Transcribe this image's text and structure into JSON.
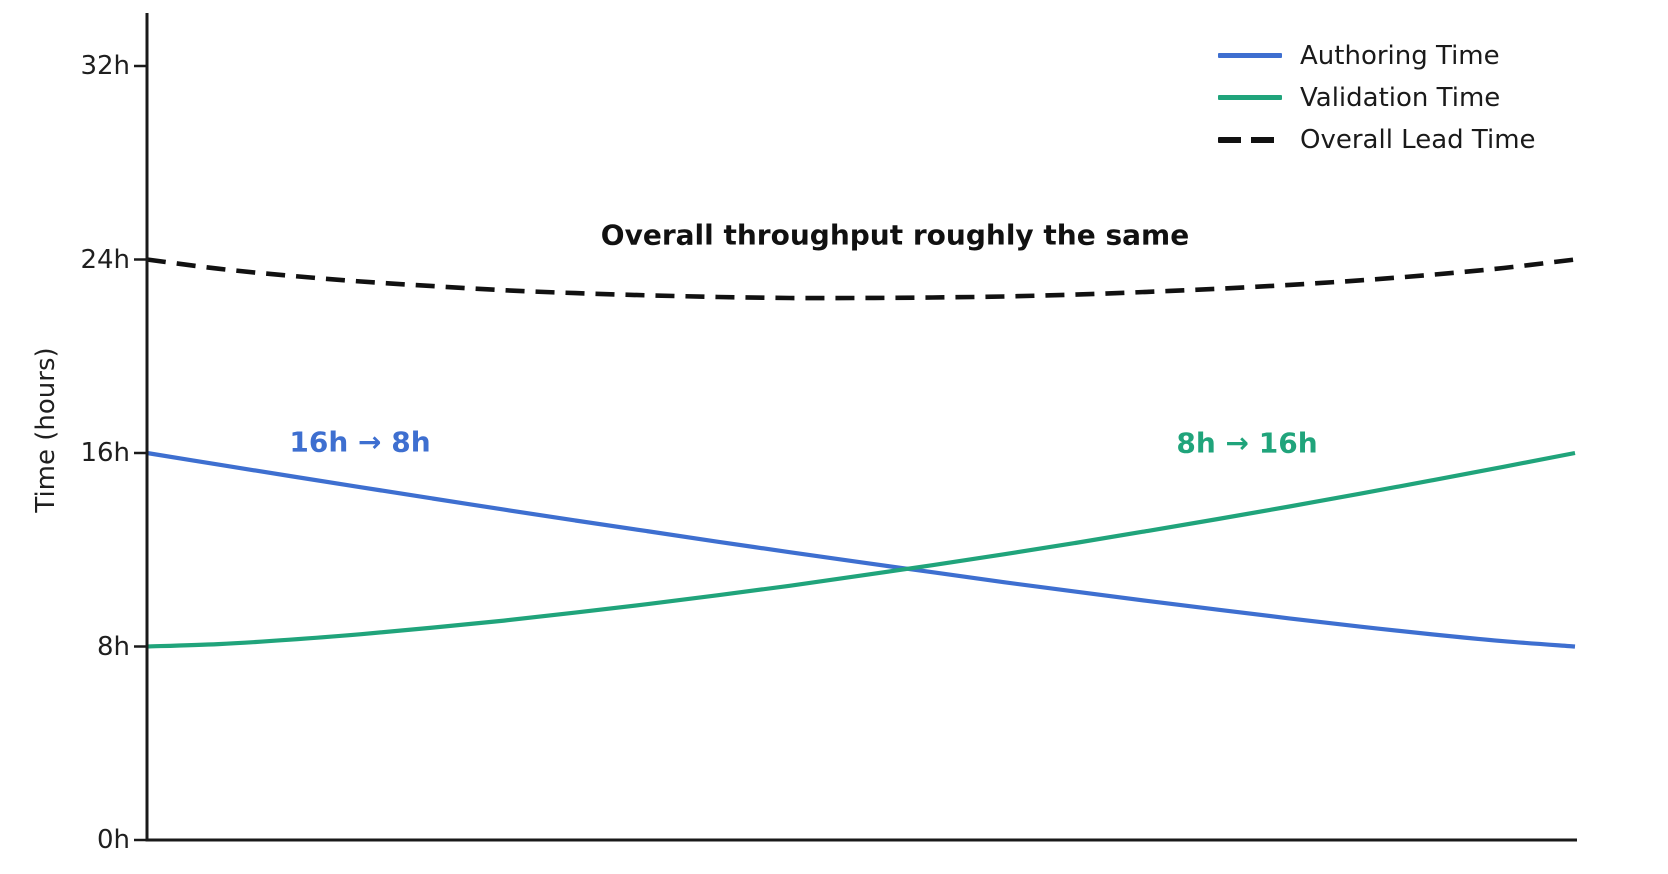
{
  "chart_data": {
    "type": "line",
    "title": "",
    "xlabel": "",
    "ylabel": "Time (hours)",
    "ylim": [
      0,
      32
    ],
    "grid": false,
    "legend_position": "upper right",
    "yticks": [
      {
        "value": 0,
        "label": "0h"
      },
      {
        "value": 8,
        "label": "8h"
      },
      {
        "value": 16,
        "label": "16h"
      },
      {
        "value": 24,
        "label": "24h"
      },
      {
        "value": 32,
        "label": "32h"
      }
    ],
    "x_percent": [
      0,
      5,
      10,
      15,
      20,
      25,
      30,
      35,
      40,
      45,
      50,
      55,
      60,
      65,
      70,
      75,
      80,
      85,
      90,
      95,
      100
    ],
    "series": [
      {
        "name": "Authoring Time",
        "color": "#3e6fd0",
        "style": "solid",
        "start_hours": 16,
        "end_hours": 8,
        "values": [
          16,
          15.52,
          15.05,
          14.58,
          14.12,
          13.66,
          13.21,
          12.77,
          12.33,
          11.9,
          11.48,
          11.07,
          10.66,
          10.27,
          9.89,
          9.52,
          9.16,
          8.82,
          8.5,
          8.22,
          8
        ]
      },
      {
        "name": "Validation Time",
        "color": "#20a47b",
        "style": "solid",
        "start_hours": 8,
        "end_hours": 16,
        "values": [
          8,
          8.1,
          8.28,
          8.51,
          8.78,
          9.07,
          9.4,
          9.75,
          10.12,
          10.51,
          10.93,
          11.36,
          11.81,
          12.28,
          12.77,
          13.27,
          13.79,
          14.32,
          14.87,
          15.43,
          16
        ]
      },
      {
        "name": "Overall Lead Time",
        "color": "#111111",
        "style": "dashed",
        "start_hours": 24,
        "end_hours": 24,
        "values": [
          24,
          23.62,
          23.33,
          23.09,
          22.9,
          22.73,
          22.61,
          22.52,
          22.45,
          22.41,
          22.41,
          22.43,
          22.47,
          22.55,
          22.66,
          22.79,
          22.95,
          23.14,
          23.37,
          23.65,
          24
        ]
      }
    ],
    "annotations": [
      {
        "text": "Overall throughput roughly the same",
        "color": "#111111",
        "x_pct": 52.4,
        "y_hours": 25.0
      },
      {
        "text": "16h → 8h",
        "color": "#3e6fd0",
        "x_pct": 14.9,
        "y_hours": 16.45
      },
      {
        "text": "8h → 16h",
        "color": "#20a47b",
        "x_pct": 77.0,
        "y_hours": 16.4
      }
    ]
  }
}
